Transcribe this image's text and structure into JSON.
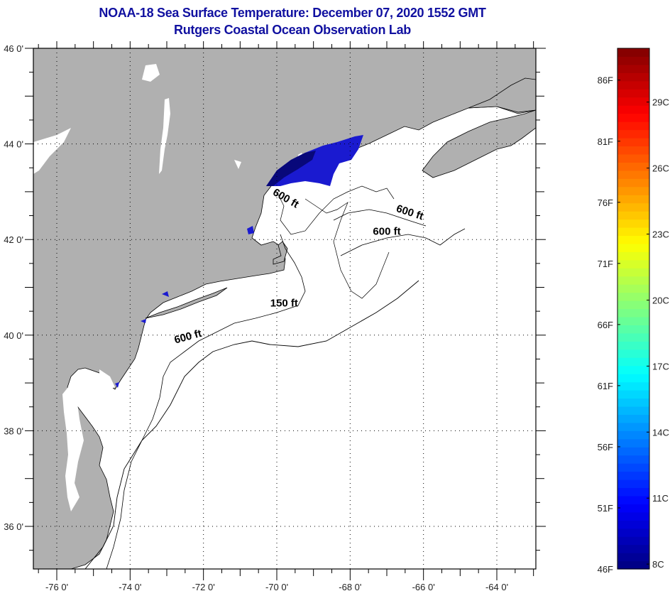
{
  "header": {
    "title": "NOAA-18 Sea Surface Temperature:  December 07, 2020 1552 GMT",
    "subtitle": "Rutgers Coastal Ocean Observation Lab"
  },
  "map": {
    "lon_range": [
      -77,
      -63
    ],
    "lat_range": [
      35,
      46
    ],
    "lon_ticks": [
      {
        "value": -76,
        "label": "-76 0'"
      },
      {
        "value": -74,
        "label": "-74 0'"
      },
      {
        "value": -72,
        "label": "-72 0'"
      },
      {
        "value": -70,
        "label": "-70 0'"
      },
      {
        "value": -68,
        "label": "-68 0'"
      },
      {
        "value": -66,
        "label": "-66 0'"
      },
      {
        "value": -64,
        "label": "-64 0'"
      }
    ],
    "lat_ticks": [
      {
        "value": 46,
        "label": "46 0'"
      },
      {
        "value": 44,
        "label": "44 0'"
      },
      {
        "value": 42,
        "label": "42 0'"
      },
      {
        "value": 40,
        "label": "40 0'"
      },
      {
        "value": 38,
        "label": "38 0'"
      },
      {
        "value": 36,
        "label": "36 0'"
      }
    ],
    "grid": "dotted",
    "land_color": "#b0b0b0",
    "nodata_color": "#ffffff",
    "contours": [
      {
        "label": "600 ft",
        "lon": -69.8,
        "lat": 42.8,
        "angle": 30
      },
      {
        "label": "600 ft",
        "lon": -66.4,
        "lat": 42.5,
        "angle": 18
      },
      {
        "label": "600 ft",
        "lon": -67.0,
        "lat": 42.1,
        "angle": 0
      },
      {
        "label": "150 ft",
        "lon": -69.8,
        "lat": 40.6,
        "angle": 0
      },
      {
        "label": "600 ft",
        "lon": -72.4,
        "lat": 39.9,
        "angle": -15
      }
    ]
  },
  "colorbar": {
    "fahrenheit_ticks": [
      "86F",
      "81F",
      "76F",
      "71F",
      "66F",
      "61F",
      "56F",
      "51F",
      "46F"
    ],
    "fahrenheit_values": [
      86,
      81,
      76,
      71,
      66,
      61,
      56,
      51,
      46
    ],
    "celsius_ticks": [
      "29C",
      "26C",
      "23C",
      "20C",
      "17C",
      "14C",
      "11C",
      "8C"
    ],
    "celsius_values": [
      29,
      26,
      23,
      20,
      17,
      14,
      11,
      8
    ],
    "range_f": [
      46,
      88.6
    ],
    "colormap": "jet"
  }
}
